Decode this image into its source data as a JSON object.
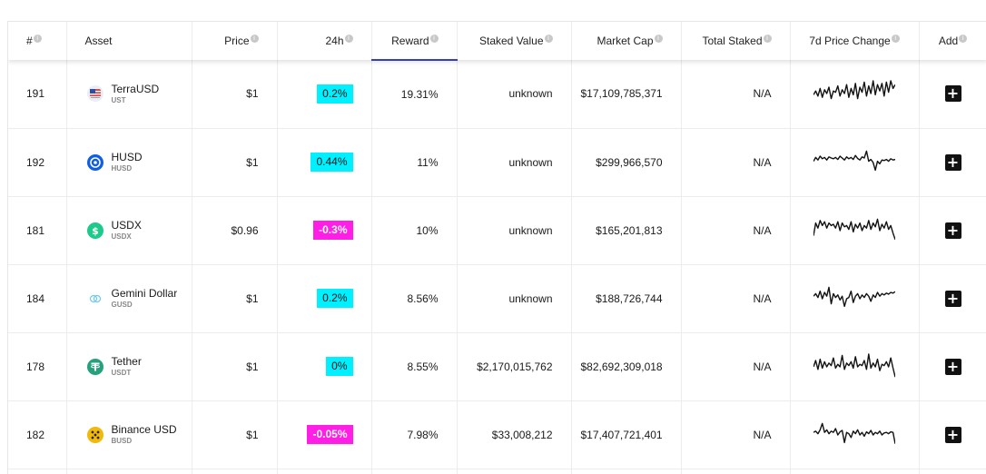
{
  "header": {
    "rank": "#",
    "asset": "Asset",
    "price": "Price",
    "change_24h": "24h",
    "reward": "Reward",
    "staked_value": "Staked Value",
    "market_cap": "Market Cap",
    "total_staked": "Total Staked",
    "price_change_7d": "7d Price Change",
    "add": "Add"
  },
  "info_glyph": "i",
  "add_glyph": "+",
  "rows": [
    {
      "rank": "191",
      "name": "TerraUSD",
      "symbol": "UST",
      "icon": "terrausd-icon",
      "price": "$1",
      "change": "0.2%",
      "change_dir": "up",
      "reward": "19.31%",
      "staked_value": "unknown",
      "market_cap": "$17,109,785,371",
      "total_staked": "N/A",
      "spark": [
        0.45,
        0.6,
        0.4,
        0.7,
        0.35,
        0.65,
        0.5,
        0.75,
        0.3,
        0.6,
        0.55,
        0.8,
        0.4,
        0.65,
        0.5,
        0.85,
        0.35,
        0.7,
        0.45,
        0.9,
        0.3,
        0.75,
        0.55,
        0.95,
        0.4,
        0.8,
        0.5,
        1.0,
        0.45,
        0.85,
        0.6,
        0.9,
        0.4,
        0.95,
        0.55,
        1.0,
        0.7,
        0.85
      ]
    },
    {
      "rank": "192",
      "name": "HUSD",
      "symbol": "HUSD",
      "icon": "husd-icon",
      "price": "$1",
      "change": "0.44%",
      "change_dir": "up",
      "reward": "11%",
      "staked_value": "unknown",
      "market_cap": "$299,966,570",
      "total_staked": "N/A",
      "spark": [
        0.55,
        0.7,
        0.6,
        0.75,
        0.65,
        0.7,
        0.6,
        0.72,
        0.68,
        0.65,
        0.7,
        0.62,
        0.75,
        0.68,
        0.6,
        0.72,
        0.65,
        0.7,
        0.62,
        0.78,
        0.66,
        0.6,
        0.72,
        0.68,
        0.95,
        0.55,
        0.62,
        0.5,
        0.2,
        0.55,
        0.45,
        0.6,
        0.58,
        0.62,
        0.55,
        0.65,
        0.6,
        0.62
      ]
    },
    {
      "rank": "181",
      "name": "USDX",
      "symbol": "USDX",
      "icon": "usdx-icon",
      "price": "$0.96",
      "change": "-0.3%",
      "change_dir": "down",
      "reward": "10%",
      "staked_value": "unknown",
      "market_cap": "$165,201,813",
      "total_staked": "N/A",
      "spark": [
        0.3,
        0.8,
        0.6,
        0.9,
        0.7,
        0.85,
        0.6,
        0.8,
        0.7,
        0.75,
        0.6,
        0.85,
        0.5,
        0.8,
        0.65,
        0.7,
        0.55,
        0.85,
        0.45,
        0.75,
        0.6,
        0.8,
        0.5,
        0.7,
        0.6,
        0.9,
        0.55,
        0.8,
        0.65,
        0.95,
        0.5,
        0.75,
        0.6,
        0.85,
        0.55,
        0.7,
        0.4,
        0.15
      ]
    },
    {
      "rank": "184",
      "name": "Gemini Dollar",
      "symbol": "GUSD",
      "icon": "gemini-dollar-icon",
      "price": "$1",
      "change": "0.2%",
      "change_dir": "up",
      "reward": "8.56%",
      "staked_value": "unknown",
      "market_cap": "$188,726,744",
      "total_staked": "N/A",
      "spark": [
        0.6,
        0.7,
        0.55,
        0.8,
        0.5,
        0.75,
        0.6,
        0.95,
        0.3,
        0.7,
        0.55,
        0.65,
        0.45,
        0.6,
        0.2,
        0.5,
        0.55,
        0.8,
        0.35,
        0.6,
        0.7,
        0.5,
        0.65,
        0.55,
        0.7,
        0.6,
        0.4,
        0.65,
        0.55,
        0.75,
        0.6,
        0.7,
        0.65,
        0.72,
        0.68,
        0.75,
        0.72,
        0.78
      ]
    },
    {
      "rank": "178",
      "name": "Tether",
      "symbol": "USDT",
      "icon": "tether-icon",
      "price": "$1",
      "change": "0%",
      "change_dir": "up",
      "reward": "8.55%",
      "staked_value": "$2,170,015,762",
      "market_cap": "$82,692,309,018",
      "total_staked": "N/A",
      "spark": [
        0.5,
        0.75,
        0.4,
        0.8,
        0.45,
        0.7,
        0.5,
        0.65,
        0.55,
        0.85,
        0.45,
        0.6,
        0.5,
        0.95,
        0.4,
        0.65,
        0.55,
        0.7,
        0.45,
        0.9,
        0.5,
        0.6,
        0.55,
        0.75,
        0.4,
        1.0,
        0.45,
        0.65,
        0.5,
        0.8,
        0.35,
        0.6,
        0.55,
        0.7,
        0.5,
        0.85,
        0.45,
        0.1
      ]
    },
    {
      "rank": "182",
      "name": "Binance USD",
      "symbol": "BUSD",
      "icon": "binance-usd-icon",
      "price": "$1",
      "change": "-0.05%",
      "change_dir": "down",
      "reward": "7.98%",
      "staked_value": "$33,008,212",
      "market_cap": "$17,407,721,401",
      "total_staked": "N/A",
      "spark": [
        0.6,
        0.65,
        0.55,
        0.7,
        0.95,
        0.6,
        0.7,
        0.55,
        0.65,
        0.6,
        0.75,
        0.5,
        0.62,
        0.68,
        0.2,
        0.6,
        0.55,
        0.4,
        0.65,
        0.55,
        0.7,
        0.5,
        0.6,
        0.45,
        0.62,
        0.55,
        0.68,
        0.5,
        0.6,
        0.55,
        0.65,
        0.5,
        0.58,
        0.6,
        0.55,
        0.62,
        0.6,
        0.15
      ]
    }
  ],
  "colors": {
    "up": "#00f0ff",
    "down": "#ff1ee6",
    "sort_underline": "#3740c7"
  }
}
